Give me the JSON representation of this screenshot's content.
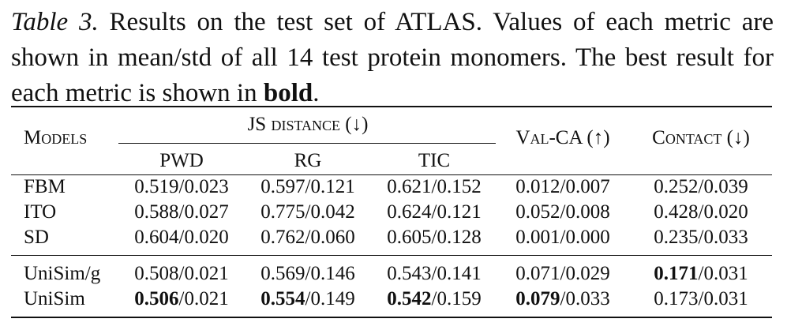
{
  "caption": {
    "label": "Table 3.",
    "text": " Results on the test set of ATLAS. Values of each metric are shown in mean/std of all 14 test protein monomers. The best result for each metric is shown in ",
    "bold": "bold",
    "end": "."
  },
  "table": {
    "header": {
      "models": "Models",
      "group": "JS distance (↓)",
      "sub": [
        "PWD",
        "RG",
        "TIC"
      ],
      "valca": "Val-CA (↑)",
      "contact": "Contact (↓)"
    },
    "groups": [
      [
        {
          "model": "FBM",
          "cells": [
            {
              "text": "0.519/0.023"
            },
            {
              "text": "0.597/0.121"
            },
            {
              "text": "0.621/0.152"
            },
            {
              "text": "0.012/0.007"
            },
            {
              "text": "0.252/0.039"
            }
          ]
        },
        {
          "model": "ITO",
          "cells": [
            {
              "text": "0.588/0.027"
            },
            {
              "text": "0.775/0.042"
            },
            {
              "text": "0.624/0.121"
            },
            {
              "text": "0.052/0.008"
            },
            {
              "text": "0.428/0.020"
            }
          ]
        },
        {
          "model": "SD",
          "cells": [
            {
              "text": "0.604/0.020"
            },
            {
              "text": "0.762/0.060"
            },
            {
              "text": "0.605/0.128"
            },
            {
              "text": "0.001/0.000"
            },
            {
              "text": "0.235/0.033"
            }
          ]
        }
      ],
      [
        {
          "model": "UniSim/g",
          "cells": [
            {
              "text": "0.508/0.021"
            },
            {
              "text": "0.569/0.146"
            },
            {
              "text": "0.543/0.141"
            },
            {
              "text": "0.071/0.029"
            },
            {
              "best": "0.171",
              "rest": "/0.031"
            }
          ]
        },
        {
          "model": "UniSim",
          "cells": [
            {
              "best": "0.506",
              "rest": "/0.021"
            },
            {
              "best": "0.554",
              "rest": "/0.149"
            },
            {
              "best": "0.542",
              "rest": "/0.159"
            },
            {
              "best": "0.079",
              "rest": "/0.033"
            },
            {
              "text": "0.173/0.031"
            }
          ]
        }
      ]
    ]
  }
}
